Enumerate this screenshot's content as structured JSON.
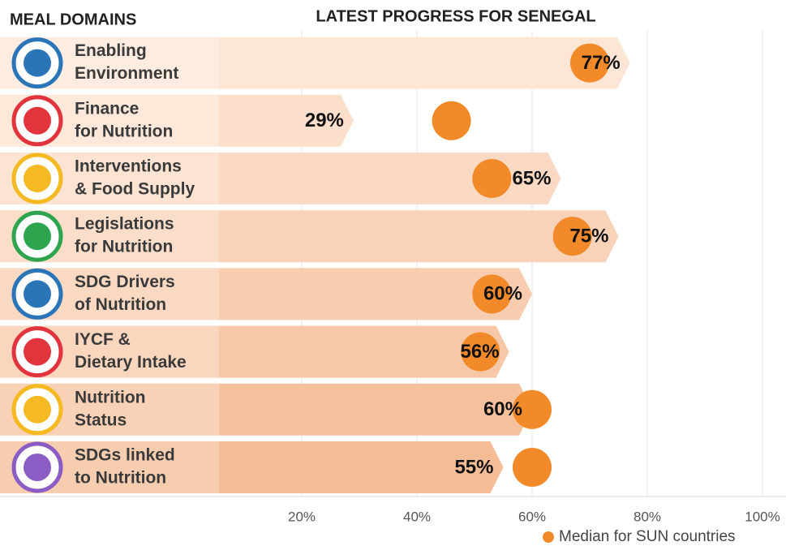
{
  "chart_data": {
    "type": "bar",
    "header": "MEAL DOMAINS",
    "title": "LATEST PROGRESS FOR SENEGAL",
    "categories": [
      [
        "Enabling",
        "Environment"
      ],
      [
        "Finance",
        "for Nutrition"
      ],
      [
        "Interventions",
        "& Food Supply"
      ],
      [
        "Legislations",
        "for Nutrition"
      ],
      [
        "SDG Drivers",
        "of Nutrition"
      ],
      [
        "IYCF &",
        "Dietary Intake"
      ],
      [
        "Nutrition",
        "Status"
      ],
      [
        "SDGs linked",
        "to Nutrition"
      ]
    ],
    "values": [
      77,
      29,
      65,
      75,
      60,
      56,
      60,
      55
    ],
    "value_labels": [
      "77%",
      "29%",
      "65%",
      "75%",
      "60%",
      "56%",
      "60%",
      "55%"
    ],
    "bar_colors": [
      "#fde6d5",
      "#fce0cc",
      "#fbdac3",
      "#f9d3b8",
      "#f8cdaf",
      "#f7c8a7",
      "#f6c29e",
      "#f5bd96"
    ],
    "median": {
      "name": "Median for SUN countries",
      "color": "#f28a2a",
      "values": [
        70,
        46,
        53,
        67,
        53,
        51,
        60,
        60
      ]
    },
    "xlim": [
      0,
      100
    ],
    "xticks": [
      {
        "value": 20,
        "label": "20%"
      },
      {
        "value": 40,
        "label": "40%"
      },
      {
        "value": 60,
        "label": "60%"
      },
      {
        "value": 80,
        "label": "80%"
      },
      {
        "value": 100,
        "label": "100%"
      }
    ],
    "grid": true
  }
}
